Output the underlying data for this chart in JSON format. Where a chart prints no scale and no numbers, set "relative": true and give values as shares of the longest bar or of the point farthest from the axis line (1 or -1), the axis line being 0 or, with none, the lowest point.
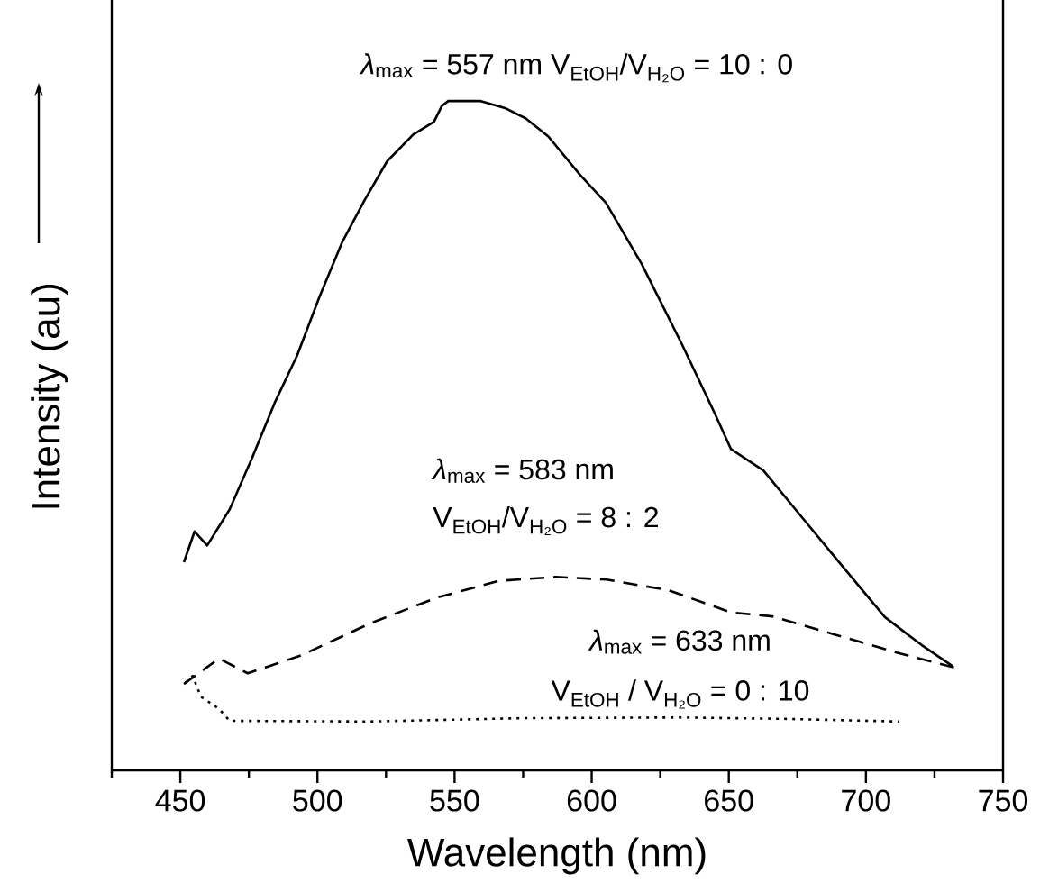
{
  "chart_data": {
    "type": "line",
    "relative": true,
    "xlabel": "Wavelength (nm)",
    "ylabel": "Intensity (au)",
    "xlim": [
      425,
      750
    ],
    "xticks": [
      {
        "value": 425,
        "label": null
      },
      450,
      {
        "value": 475,
        "label": null
      },
      500,
      {
        "value": 525,
        "label": null
      },
      550,
      {
        "value": 575,
        "label": null
      },
      600,
      {
        "value": 625,
        "label": null
      },
      650,
      {
        "value": 675,
        "label": null
      },
      700,
      {
        "value": 725,
        "label": null
      },
      750
    ],
    "tick_labels": "x",
    "grid": false,
    "marker": "none",
    "annotations": [
      "*λ*$_{max}$ = 557 nm   V$_{EtOH}$/V$_{H₂O}$ = 10 : 0",
      "*λ*$_{max}$ = 583 nm",
      "V$_{EtOH}$/V$_{H₂O}$ = 8 : 2",
      "*λ*$_{max}$ = 633 nm",
      "V$_{EtOH}$ / V$_{H₂O}$ = 0 : 10"
    ],
    "series": [
      {
        "color": "#000000",
        "line_style": "solid",
        "x": [
          451.3,
          455.2,
          459.8,
          468.0,
          476.2,
          484.4,
          492.6,
          500.8,
          509.0,
          517.2,
          525.4,
          534.9,
          542.5,
          545.4,
          547.7,
          559.6,
          568.7,
          576.0,
          584.2,
          595.7,
          605.2,
          618.3,
          633.1,
          644.9,
          650.8,
          662.6,
          676.1,
          690.8,
          706.9,
          720.4,
          731.5
        ],
        "values": [
          0.311,
          0.357,
          0.336,
          0.39,
          0.467,
          0.549,
          0.62,
          0.708,
          0.789,
          0.852,
          0.91,
          0.95,
          0.969,
          0.993,
          1,
          1,
          0.989,
          0.974,
          0.947,
          0.89,
          0.848,
          0.756,
          0.635,
          0.533,
          0.48,
          0.448,
          0.381,
          0.308,
          0.229,
          0.187,
          0.156
        ]
      },
      {
        "color": "#000000",
        "line_style": "dashed",
        "x": [
          451.3,
          464.1,
          474.6,
          494.2,
          518.9,
          543.5,
          566.1,
          586.8,
          605.5,
          628.1,
          650.8,
          665.9,
          688.5,
          711.2,
          732.8
        ],
        "values": [
          0.129,
          0.167,
          0.145,
          0.172,
          0.219,
          0.258,
          0.283,
          0.289,
          0.285,
          0.269,
          0.236,
          0.23,
          0.203,
          0.176,
          0.153
        ]
      },
      {
        "color": "#000000",
        "line_style": "dotted",
        "x": [
          451.9,
          454.5,
          457.5,
          464.1,
          468.0,
          518.9,
          575.3,
          632.1,
          669.8,
          712.2
        ],
        "values": [
          0.131,
          0.141,
          0.11,
          0.092,
          0.074,
          0.073,
          0.078,
          0.079,
          0.077,
          0.073
        ]
      }
    ]
  }
}
